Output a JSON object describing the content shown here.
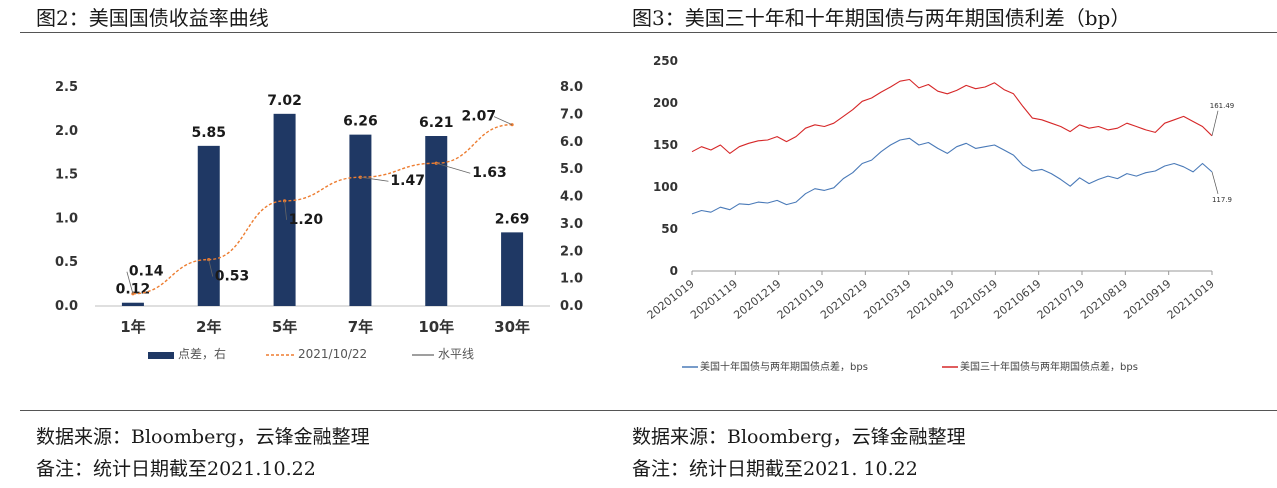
{
  "left_panel": {
    "title": "图2：美国国债收益率曲线",
    "source": "数据来源：Bloomberg，云锋金融整理",
    "note": "备注：统计日期截至2021.10.22"
  },
  "right_panel": {
    "title": "图3：美国三十年和十年期国债与两年期国债利差（bp）",
    "source": "数据来源：Bloomberg，云锋金融整理",
    "note": "备注：统计日期截至2021. 10.22"
  },
  "colors": {
    "bar": "#1f3864",
    "curve": "#ed7d31",
    "series10": "#4a7ab8",
    "series30": "#d62728",
    "axis": "#999999"
  },
  "chart_data": [
    {
      "type": "bar",
      "categories": [
        "1年",
        "2年",
        "5年",
        "7年",
        "10年",
        "30年"
      ],
      "series": [
        {
          "name": "点差，右",
          "kind": "bar",
          "axis": "right",
          "values": [
            0.12,
            5.85,
            7.02,
            6.26,
            6.21,
            2.69
          ],
          "labels": [
            "0.12",
            "5.85",
            "7.02",
            "6.26",
            "6.21",
            "2.69"
          ]
        },
        {
          "name": "2021/10/22",
          "kind": "line",
          "axis": "left",
          "values": [
            0.14,
            0.53,
            1.2,
            1.47,
            1.63,
            2.07
          ],
          "labels": [
            "0.14",
            "0.53",
            "1.20",
            "1.47",
            "1.63",
            "2.07"
          ]
        },
        {
          "name": "水平线",
          "kind": "legend-only"
        }
      ],
      "left_axis": {
        "ylim": [
          0,
          2.5
        ],
        "ticks": [
          "0.0",
          "0.5",
          "1.0",
          "1.5",
          "2.0",
          "2.5"
        ]
      },
      "right_axis": {
        "ylim": [
          0,
          8
        ],
        "ticks": [
          "0.0",
          "1.0",
          "2.0",
          "3.0",
          "4.0",
          "5.0",
          "6.0",
          "7.0",
          "8.0"
        ]
      },
      "legend": [
        "点差，右",
        "2021/10/22",
        "水平线"
      ]
    },
    {
      "type": "line",
      "x_ticks": [
        "20201019",
        "20201119",
        "20201219",
        "20210119",
        "20210219",
        "20210319",
        "20210419",
        "20210519",
        "20210619",
        "20210719",
        "20210819",
        "20210919",
        "20211019"
      ],
      "ylim": [
        0,
        250
      ],
      "y_ticks": [
        "0",
        "50",
        "100",
        "150",
        "200",
        "250"
      ],
      "series": [
        {
          "name": "美国十年国债与两年期国债点差，bps",
          "values": [
            68,
            72,
            70,
            76,
            73,
            80,
            79,
            82,
            81,
            84,
            79,
            82,
            92,
            98,
            96,
            99,
            110,
            117,
            128,
            132,
            142,
            150,
            156,
            158,
            150,
            153,
            146,
            140,
            148,
            152,
            146,
            148,
            150,
            144,
            138,
            126,
            119,
            121,
            116,
            109,
            101,
            111,
            104,
            109,
            113,
            110,
            116,
            113,
            117,
            119,
            125,
            128,
            124,
            118,
            128,
            118
          ],
          "end_label": "117.9"
        },
        {
          "name": "美国三十年国债与两年期国债点差，bps",
          "values": [
            142,
            148,
            144,
            150,
            140,
            148,
            152,
            155,
            156,
            160,
            154,
            160,
            170,
            174,
            172,
            176,
            184,
            192,
            202,
            206,
            213,
            219,
            226,
            228,
            218,
            222,
            214,
            211,
            215,
            221,
            217,
            219,
            224,
            216,
            211,
            196,
            182,
            180,
            176,
            172,
            166,
            174,
            170,
            172,
            168,
            170,
            176,
            172,
            168,
            165,
            176,
            180,
            184,
            178,
            172,
            161
          ],
          "end_label": "161.49"
        }
      ],
      "legend": [
        "美国十年国债与两年期国债点差，bps",
        "美国三十年国债与两年期国债点差，bps"
      ]
    }
  ]
}
